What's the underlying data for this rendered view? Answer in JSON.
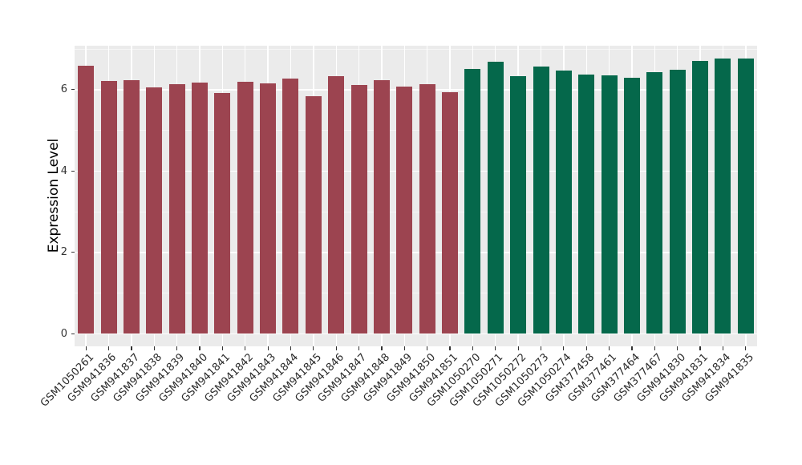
{
  "chart_data": {
    "type": "bar",
    "title": "",
    "xlabel": "",
    "ylabel": "Expression Level",
    "yticks": [
      0,
      2,
      4,
      6
    ],
    "minor_yticks": [
      1,
      3,
      5,
      7
    ],
    "ylim": [
      -0.31,
      7.08
    ],
    "legend": "none",
    "panel_background": "#EBEBEB",
    "grid_major_color": "#FFFFFF",
    "grid_minor_color": "#F6F6F6",
    "tick_color": "#333333",
    "group_colors": {
      "group1": "#9C4450",
      "group2": "#05684B"
    },
    "bars": [
      {
        "label": "GSM1050261",
        "value": 6.58,
        "group": "group1"
      },
      {
        "label": "GSM941836",
        "value": 6.21,
        "group": "group1"
      },
      {
        "label": "GSM941837",
        "value": 6.24,
        "group": "group1"
      },
      {
        "label": "GSM941838",
        "value": 6.06,
        "group": "group1"
      },
      {
        "label": "GSM941839",
        "value": 6.14,
        "group": "group1"
      },
      {
        "label": "GSM941840",
        "value": 6.18,
        "group": "group1"
      },
      {
        "label": "GSM941841",
        "value": 5.92,
        "group": "group1"
      },
      {
        "label": "GSM941842",
        "value": 6.19,
        "group": "group1"
      },
      {
        "label": "GSM941843",
        "value": 6.15,
        "group": "group1"
      },
      {
        "label": "GSM941844",
        "value": 6.28,
        "group": "group1"
      },
      {
        "label": "GSM941845",
        "value": 5.83,
        "group": "group1"
      },
      {
        "label": "GSM941846",
        "value": 6.33,
        "group": "group1"
      },
      {
        "label": "GSM941847",
        "value": 6.12,
        "group": "group1"
      },
      {
        "label": "GSM941848",
        "value": 6.24,
        "group": "group1"
      },
      {
        "label": "GSM941849",
        "value": 6.07,
        "group": "group1"
      },
      {
        "label": "GSM941850",
        "value": 6.14,
        "group": "group1"
      },
      {
        "label": "GSM941851",
        "value": 5.94,
        "group": "group1"
      },
      {
        "label": "GSM1050270",
        "value": 6.51,
        "group": "group2"
      },
      {
        "label": "GSM1050271",
        "value": 6.69,
        "group": "group2"
      },
      {
        "label": "GSM1050272",
        "value": 6.33,
        "group": "group2"
      },
      {
        "label": "GSM1050273",
        "value": 6.56,
        "group": "group2"
      },
      {
        "label": "GSM1050274",
        "value": 6.46,
        "group": "group2"
      },
      {
        "label": "GSM377458",
        "value": 6.38,
        "group": "group2"
      },
      {
        "label": "GSM377461",
        "value": 6.36,
        "group": "group2"
      },
      {
        "label": "GSM377464",
        "value": 6.3,
        "group": "group2"
      },
      {
        "label": "GSM377467",
        "value": 6.42,
        "group": "group2"
      },
      {
        "label": "GSM941830",
        "value": 6.48,
        "group": "group2"
      },
      {
        "label": "GSM941831",
        "value": 6.71,
        "group": "group2"
      },
      {
        "label": "GSM941834",
        "value": 6.76,
        "group": "group2"
      },
      {
        "label": "GSM941835",
        "value": 6.77,
        "group": "group2"
      }
    ]
  }
}
